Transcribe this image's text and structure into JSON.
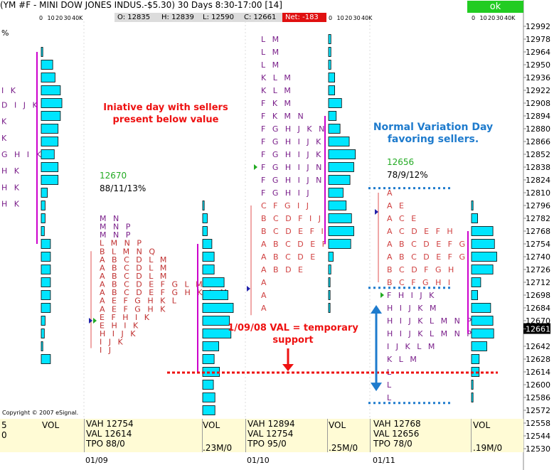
{
  "header": {
    "title": "(YM #F - MINI DOW JONES INDUS.-$5.30) 30 Days 8:30-17:00 [14]",
    "ok_label": "ok",
    "ohlc": [
      {
        "key": "open",
        "label": "O: 12835"
      },
      {
        "key": "high",
        "label": "H: 12839"
      },
      {
        "key": "low",
        "label": "L: 12590"
      },
      {
        "key": "close",
        "label": "C: 12661"
      },
      {
        "key": "net",
        "label": "Net: -183"
      }
    ],
    "percent_symbol": "%",
    "volume_scale": [
      "0",
      "10",
      "20",
      "30",
      "40K"
    ]
  },
  "copyright": "Copyright © 2007 eSignal.",
  "annotations": {
    "initiative": "Iniative day with sellers present below value",
    "val_support": "1/09/08 VAL = temporary support",
    "normal_variation": "Normal Variation Day favoring sellers."
  },
  "colors": {
    "bar_fill": "#00e5ff",
    "value_area_line": "#cc00cc",
    "annotation_red": "#ee1111",
    "annotation_blue": "#1e7bcd",
    "poc_green": "#22aa22",
    "summary_bg": "#fffbd5",
    "price_highlight": "#000000"
  },
  "chart_data": {
    "type": "market_profile",
    "title": "(YM #F - MINI DOW JONES INDUS.-$5.30) 30 Days 8:30-17:00 [14]",
    "price_axis": {
      "ticks": [
        12992,
        12978,
        12964,
        12950,
        12936,
        12922,
        12908,
        12894,
        12880,
        12866,
        12852,
        12838,
        12824,
        12810,
        12796,
        12782,
        12768,
        12754,
        12740,
        12726,
        12712,
        12698,
        12684,
        12670,
        12661,
        12642,
        12628,
        12614,
        12600,
        12586,
        12572,
        12558,
        12544,
        12530
      ],
      "current_price": "12661"
    },
    "val_line_price": 12614,
    "days": [
      {
        "date": "01/09",
        "poc_label": "12670",
        "stats_label": "88/11/13%",
        "summary": {
          "vah": "VAH 12754",
          "val": "VAL 12614",
          "tpo": "TPO 88/0"
        },
        "volume_label": "VOL",
        "volume_total": ".23M/0",
        "tpo_rows": [
          {
            "price": 12782,
            "letters": "MN"
          },
          {
            "price": 12773,
            "letters": "MNP"
          },
          {
            "price": 12764,
            "letters": "MNP"
          },
          {
            "price": 12755,
            "letters": "LMNP"
          },
          {
            "price": 12746,
            "letters": "BLMNQ"
          },
          {
            "price": 12737,
            "letters": "ABCDLM"
          },
          {
            "price": 12728,
            "letters": "ABCDLM"
          },
          {
            "price": 12719,
            "letters": "ABCDLM"
          },
          {
            "price": 12710,
            "letters": "ABCDEFGLM"
          },
          {
            "price": 12701,
            "letters": "ABCDEFGHKLM"
          },
          {
            "price": 12692,
            "letters": "AEFGHKL"
          },
          {
            "price": 12683,
            "letters": "AEFGHK"
          },
          {
            "price": 12674,
            "letters": "EFHIK"
          },
          {
            "price": 12665,
            "letters": "EHIK"
          },
          {
            "price": 12656,
            "letters": "HIJK"
          },
          {
            "price": 12647,
            "letters": "IJK"
          },
          {
            "price": 12638,
            "letters": "IJ"
          }
        ],
        "volume_profile": [
          {
            "price": 12796,
            "volume": 2
          },
          {
            "price": 12782,
            "volume": 6
          },
          {
            "price": 12768,
            "volume": 6
          },
          {
            "price": 12754,
            "volume": 12
          },
          {
            "price": 12740,
            "volume": 15
          },
          {
            "price": 12726,
            "volume": 15
          },
          {
            "price": 12712,
            "volume": 28
          },
          {
            "price": 12698,
            "volume": 33
          },
          {
            "price": 12684,
            "volume": 40
          },
          {
            "price": 12670,
            "volume": 35
          },
          {
            "price": 12656,
            "volume": 37
          },
          {
            "price": 12642,
            "volume": 21
          },
          {
            "price": 12628,
            "volume": 15
          },
          {
            "price": 12614,
            "volume": 22
          },
          {
            "price": 12600,
            "volume": 14
          },
          {
            "price": 12586,
            "volume": 16
          },
          {
            "price": 12572,
            "volume": 16
          }
        ]
      },
      {
        "date": "01/10",
        "poc_label": "",
        "stats_label": "",
        "summary": {
          "vah": "VAH 12894",
          "val": "VAL 12754",
          "tpo": "TPO 95/0"
        },
        "volume_label": "VOL",
        "volume_total": ".25M/0",
        "tpo_rows": [
          {
            "price": 12978,
            "letters": "LM"
          },
          {
            "price": 12964,
            "letters": "LM"
          },
          {
            "price": 12950,
            "letters": "LM"
          },
          {
            "price": 12936,
            "letters": "KLM"
          },
          {
            "price": 12922,
            "letters": "KLM"
          },
          {
            "price": 12908,
            "letters": "FKM"
          },
          {
            "price": 12894,
            "letters": "FKMN"
          },
          {
            "price": 12880,
            "letters": "FGHJKN"
          },
          {
            "price": 12866,
            "letters": "FGHIJKN"
          },
          {
            "price": 12852,
            "letters": "FGHIJKN"
          },
          {
            "price": 12838,
            "letters": "FGHIJNP"
          },
          {
            "price": 12824,
            "letters": "FGHIJNP"
          },
          {
            "price": 12810,
            "letters": "FGHIJ"
          },
          {
            "price": 12796,
            "letters": "CFGIJ"
          },
          {
            "price": 12782,
            "letters": "BCDFIJ"
          },
          {
            "price": 12768,
            "letters": "BCDEFIJ"
          },
          {
            "price": 12754,
            "letters": "ABCDEFI"
          },
          {
            "price": 12740,
            "letters": "ABCDE"
          },
          {
            "price": 12726,
            "letters": "ABDE"
          },
          {
            "price": 12712,
            "letters": "A"
          },
          {
            "price": 12698,
            "letters": "A"
          },
          {
            "price": 12684,
            "letters": "A"
          }
        ],
        "volume_profile": [
          {
            "price": 12978,
            "volume": 3
          },
          {
            "price": 12964,
            "volume": 3
          },
          {
            "price": 12950,
            "volume": 3
          },
          {
            "price": 12936,
            "volume": 8
          },
          {
            "price": 12922,
            "volume": 8
          },
          {
            "price": 12908,
            "volume": 17
          },
          {
            "price": 12894,
            "volume": 10
          },
          {
            "price": 12880,
            "volume": 15
          },
          {
            "price": 12866,
            "volume": 27
          },
          {
            "price": 12852,
            "volume": 35
          },
          {
            "price": 12838,
            "volume": 33
          },
          {
            "price": 12824,
            "volume": 28
          },
          {
            "price": 12810,
            "volume": 19
          },
          {
            "price": 12796,
            "volume": 23
          },
          {
            "price": 12782,
            "volume": 30
          },
          {
            "price": 12768,
            "volume": 33
          },
          {
            "price": 12754,
            "volume": 29
          },
          {
            "price": 12740,
            "volume": 6
          },
          {
            "price": 12726,
            "volume": 3
          },
          {
            "price": 12712,
            "volume": 2
          },
          {
            "price": 12698,
            "volume": 2
          },
          {
            "price": 12684,
            "volume": 2
          }
        ]
      },
      {
        "date": "01/11",
        "poc_label": "12656",
        "stats_label": "78/9/12%",
        "summary": {
          "vah": "VAH 12768",
          "val": "VAL 12656",
          "tpo": "TPO 78/0"
        },
        "volume_label": "VOL",
        "volume_total": ".19M/0",
        "tpo_rows": [
          {
            "price": 12810,
            "letters": "A"
          },
          {
            "price": 12796,
            "letters": "AE"
          },
          {
            "price": 12782,
            "letters": "ACE"
          },
          {
            "price": 12768,
            "letters": "ACDEFH"
          },
          {
            "price": 12754,
            "letters": "ABCDEFGH"
          },
          {
            "price": 12740,
            "letters": "ABCDEFGH"
          },
          {
            "price": 12726,
            "letters": "BCDFGH"
          },
          {
            "price": 12712,
            "letters": "BCFGHI"
          },
          {
            "price": 12698,
            "letters": "FHIJK"
          },
          {
            "price": 12684,
            "letters": "HIJKM"
          },
          {
            "price": 12670,
            "letters": "HIJKLMNP"
          },
          {
            "price": 12656,
            "letters": "HIJKLMNPQ"
          },
          {
            "price": 12642,
            "letters": "IJKLM"
          },
          {
            "price": 12628,
            "letters": "KLM"
          },
          {
            "price": 12614,
            "letters": "L"
          },
          {
            "price": 12600,
            "letters": "L"
          },
          {
            "price": 12586,
            "letters": "L"
          }
        ],
        "volume_profile": [
          {
            "price": 12796,
            "volume": 2
          },
          {
            "price": 12782,
            "volume": 8
          },
          {
            "price": 12768,
            "volume": 28
          },
          {
            "price": 12754,
            "volume": 30
          },
          {
            "price": 12740,
            "volume": 33
          },
          {
            "price": 12726,
            "volume": 28
          },
          {
            "price": 12712,
            "volume": 12
          },
          {
            "price": 12698,
            "volume": 8
          },
          {
            "price": 12684,
            "volume": 25
          },
          {
            "price": 12670,
            "volume": 28
          },
          {
            "price": 12656,
            "volume": 29
          },
          {
            "price": 12642,
            "volume": 20
          },
          {
            "price": 12628,
            "volume": 10
          },
          {
            "price": 12614,
            "volume": 10
          },
          {
            "price": 12600,
            "volume": 2
          },
          {
            "price": 12586,
            "volume": 2
          }
        ]
      }
    ],
    "prior_day": {
      "tpo_rows": [
        {
          "price": 12922,
          "letters": "IK"
        },
        {
          "price": 12906,
          "letters": "DIJK"
        },
        {
          "price": 12888,
          "letters": "K"
        },
        {
          "price": 12870,
          "letters": "K"
        },
        {
          "price": 12852,
          "letters": "GHIK"
        },
        {
          "price": 12834,
          "letters": "HK"
        },
        {
          "price": 12816,
          "letters": "HK"
        },
        {
          "price": 12798,
          "letters": "HK"
        }
      ],
      "volume_profile": [
        {
          "price": 12964,
          "volume": 2
        },
        {
          "price": 12950,
          "volume": 15
        },
        {
          "price": 12936,
          "volume": 18
        },
        {
          "price": 12922,
          "volume": 25
        },
        {
          "price": 12908,
          "volume": 27
        },
        {
          "price": 12894,
          "volume": 25
        },
        {
          "price": 12880,
          "volume": 22
        },
        {
          "price": 12866,
          "volume": 22
        },
        {
          "price": 12852,
          "volume": 17
        },
        {
          "price": 12838,
          "volume": 22
        },
        {
          "price": 12824,
          "volume": 22
        },
        {
          "price": 12810,
          "volume": 8
        },
        {
          "price": 12796,
          "volume": 5
        },
        {
          "price": 12782,
          "volume": 5
        },
        {
          "price": 12768,
          "volume": 4
        },
        {
          "price": 12754,
          "volume": 12
        },
        {
          "price": 12740,
          "volume": 12
        },
        {
          "price": 12726,
          "volume": 12
        },
        {
          "price": 12712,
          "volume": 12
        },
        {
          "price": 12698,
          "volume": 12
        },
        {
          "price": 12684,
          "volume": 12
        },
        {
          "price": 12670,
          "volume": 5
        },
        {
          "price": 12656,
          "volume": 4
        },
        {
          "price": 12642,
          "volume": 2
        },
        {
          "price": 12628,
          "volume": 12
        }
      ],
      "summary": {
        "tick": "5",
        "zero": "0",
        "volume_label": "VOL"
      }
    }
  }
}
